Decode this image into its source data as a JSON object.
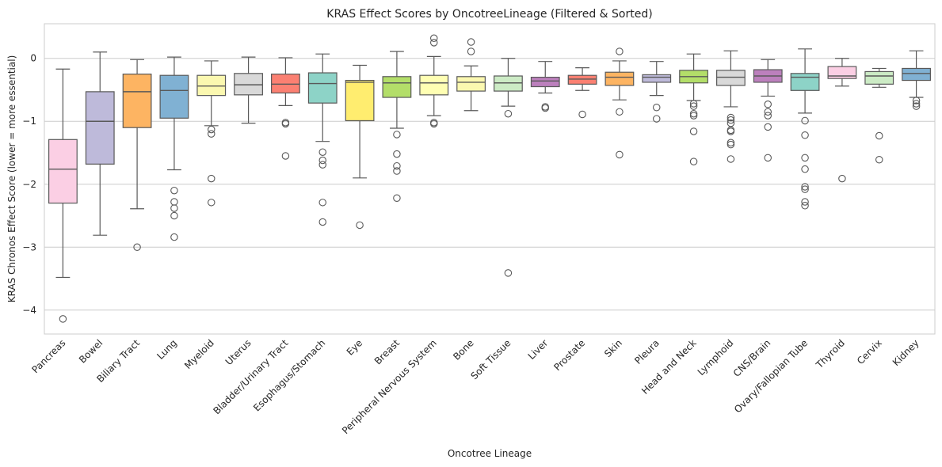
{
  "chart_data": {
    "type": "box",
    "title": "KRAS Effect Scores by OncotreeLineage (Filtered & Sorted)",
    "xlabel": "Oncotree Lineage",
    "ylabel": "KRAS Chronos Effect Score (lower = more essential)",
    "ylim": [
      -4.38,
      0.55
    ],
    "yticks": [
      0,
      -1,
      -2,
      -3,
      -4
    ],
    "grid": "horizontal",
    "categories": [
      "Pancreas",
      "Bowel",
      "Biliary Tract",
      "Lung",
      "Myeloid",
      "Uterus",
      "Bladder/Urinary Tract",
      "Esophagus/Stomach",
      "Eye",
      "Breast",
      "Peripheral Nervous System",
      "Bone",
      "Soft Tissue",
      "Liver",
      "Prostate",
      "Skin",
      "Pleura",
      "Head and Neck",
      "Lymphoid",
      "CNS/Brain",
      "Ovary/Fallopian Tube",
      "Thyroid",
      "Cervix",
      "Kidney"
    ],
    "colors": [
      "#fbcfe4",
      "#bebada",
      "#fdb462",
      "#80b1d3",
      "#fbf8b0",
      "#d9d9d9",
      "#fb8072",
      "#8dd3c7",
      "#ffed6f",
      "#b3de69",
      "#ffffb3",
      "#fbf8b0",
      "#ccebc5",
      "#bc80bd",
      "#fb8072",
      "#fdb462",
      "#bebada",
      "#b3de69",
      "#d9d9d9",
      "#bc80bd",
      "#8dd3c7",
      "#fbcfe4",
      "#ccebc5",
      "#80b1d3"
    ],
    "boxes": [
      {
        "whislo": -3.48,
        "q1": -2.3,
        "med": -1.76,
        "q3": -1.29,
        "whishi": -0.17,
        "fliers": [
          -4.14
        ]
      },
      {
        "whislo": -2.81,
        "q1": -1.68,
        "med": -1.0,
        "q3": -0.53,
        "whishi": 0.1,
        "fliers": []
      },
      {
        "whislo": -2.39,
        "q1": -1.1,
        "med": -0.53,
        "q3": -0.25,
        "whishi": -0.02,
        "fliers": [
          -3.0
        ]
      },
      {
        "whislo": -1.77,
        "q1": -0.95,
        "med": -0.51,
        "q3": -0.27,
        "whishi": 0.02,
        "fliers": [
          -2.1,
          -2.28,
          -2.38,
          -2.5,
          -2.84
        ]
      },
      {
        "whislo": -1.07,
        "q1": -0.59,
        "med": -0.44,
        "q3": -0.27,
        "whishi": -0.04,
        "fliers": [
          -1.13,
          -1.2,
          -1.91,
          -2.29
        ]
      },
      {
        "whislo": -1.03,
        "q1": -0.58,
        "med": -0.42,
        "q3": -0.24,
        "whishi": 0.02,
        "fliers": []
      },
      {
        "whislo": -0.75,
        "q1": -0.55,
        "med": -0.41,
        "q3": -0.25,
        "whishi": 0.01,
        "fliers": [
          -1.02,
          -1.04,
          -1.55
        ]
      },
      {
        "whislo": -1.32,
        "q1": -0.71,
        "med": -0.4,
        "q3": -0.23,
        "whishi": 0.07,
        "fliers": [
          -1.49,
          -1.62,
          -1.69,
          -2.29,
          -2.6
        ]
      },
      {
        "whislo": -1.9,
        "q1": -0.99,
        "med": -0.38,
        "q3": -0.35,
        "whishi": -0.11,
        "fliers": [
          -2.65
        ]
      },
      {
        "whislo": -1.11,
        "q1": -0.62,
        "med": -0.39,
        "q3": -0.29,
        "whishi": 0.11,
        "fliers": [
          -1.21,
          -1.52,
          -1.71,
          -1.79,
          -2.22
        ]
      },
      {
        "whislo": -0.91,
        "q1": -0.58,
        "med": -0.39,
        "q3": -0.27,
        "whishi": 0.03,
        "fliers": [
          -1.02,
          -1.04,
          0.25,
          0.32
        ]
      },
      {
        "whislo": -0.83,
        "q1": -0.52,
        "med": -0.38,
        "q3": -0.29,
        "whishi": -0.12,
        "fliers": [
          0.11,
          0.26
        ]
      },
      {
        "whislo": -0.76,
        "q1": -0.52,
        "med": -0.39,
        "q3": -0.28,
        "whishi": 0.0,
        "fliers": [
          -0.88,
          -3.41
        ]
      },
      {
        "whislo": -0.55,
        "q1": -0.45,
        "med": -0.36,
        "q3": -0.3,
        "whishi": -0.05,
        "fliers": [
          -0.77,
          -0.79
        ]
      },
      {
        "whislo": -0.51,
        "q1": -0.41,
        "med": -0.33,
        "q3": -0.27,
        "whishi": -0.15,
        "fliers": [
          -0.89
        ]
      },
      {
        "whislo": -0.66,
        "q1": -0.43,
        "med": -0.3,
        "q3": -0.22,
        "whishi": -0.04,
        "fliers": [
          -0.85,
          -1.53,
          0.11
        ]
      },
      {
        "whislo": -0.59,
        "q1": -0.38,
        "med": -0.3,
        "q3": -0.26,
        "whishi": -0.05,
        "fliers": [
          -0.78,
          -0.96
        ]
      },
      {
        "whislo": -0.67,
        "q1": -0.39,
        "med": -0.29,
        "q3": -0.19,
        "whishi": 0.07,
        "fliers": [
          -0.72,
          -0.76,
          -0.88,
          -0.91,
          -1.16,
          -1.64
        ]
      },
      {
        "whislo": -0.77,
        "q1": -0.43,
        "med": -0.3,
        "q3": -0.19,
        "whishi": 0.12,
        "fliers": [
          -0.94,
          -0.98,
          -1.03,
          -1.14,
          -1.16,
          -1.34,
          -1.37,
          -1.6
        ]
      },
      {
        "whislo": -0.6,
        "q1": -0.38,
        "med": -0.28,
        "q3": -0.18,
        "whishi": -0.02,
        "fliers": [
          -0.73,
          -0.85,
          -0.91,
          -1.09,
          -1.58
        ]
      },
      {
        "whislo": -0.87,
        "q1": -0.51,
        "med": -0.3,
        "q3": -0.24,
        "whishi": 0.15,
        "fliers": [
          -0.99,
          -1.22,
          -1.58,
          -1.76,
          -2.04,
          -2.08,
          -2.28,
          -2.34
        ]
      },
      {
        "whislo": -0.44,
        "q1": -0.32,
        "med": -0.28,
        "q3": -0.13,
        "whishi": 0.0,
        "fliers": [
          -1.91
        ]
      },
      {
        "whislo": -0.46,
        "q1": -0.41,
        "med": -0.28,
        "q3": -0.21,
        "whishi": -0.16,
        "fliers": [
          -1.23,
          -1.61
        ]
      },
      {
        "whislo": -0.62,
        "q1": -0.35,
        "med": -0.24,
        "q3": -0.16,
        "whishi": 0.12,
        "fliers": [
          -0.67,
          -0.72,
          -0.76
        ]
      }
    ]
  }
}
